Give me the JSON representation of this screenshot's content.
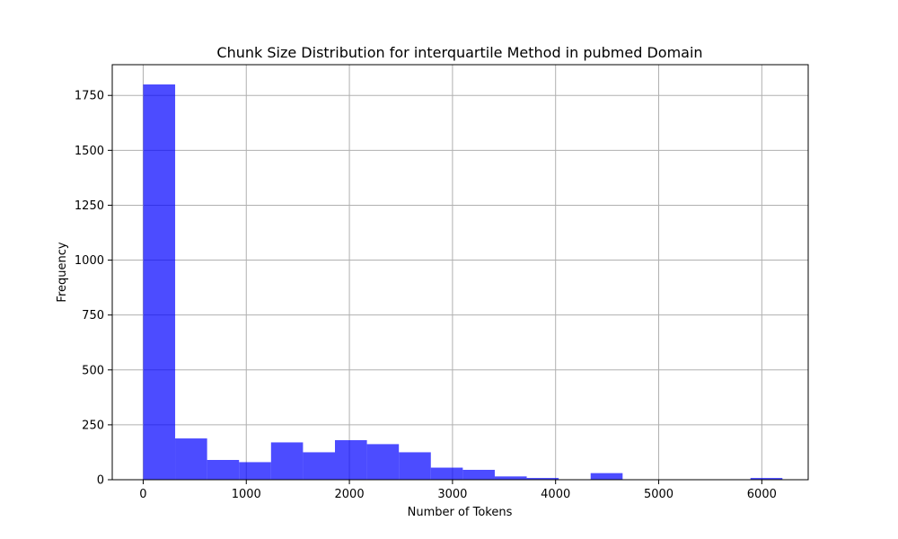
{
  "chart_data": {
    "type": "bar",
    "title": "Chunk Size Distribution for interquartile Method in pubmed Domain",
    "xlabel": "Number of Tokens",
    "ylabel": "Frequency",
    "xlim": [
      -300,
      6450
    ],
    "ylim": [
      0,
      1890
    ],
    "grid": true,
    "bar_color": "#0000ff",
    "bar_opacity": 0.7,
    "x_ticks": [
      0,
      1000,
      2000,
      3000,
      4000,
      5000,
      6000
    ],
    "x_tick_labels": [
      "0",
      "1000",
      "2000",
      "3000",
      "4000",
      "5000",
      "6000"
    ],
    "y_ticks": [
      0,
      250,
      500,
      750,
      1000,
      1250,
      1500,
      1750
    ],
    "y_tick_labels": [
      "0",
      "250",
      "500",
      "750",
      "1000",
      "1250",
      "1500",
      "1750"
    ],
    "bins": [
      {
        "x0": 0,
        "x1": 310,
        "count": 1800
      },
      {
        "x0": 310,
        "x1": 620,
        "count": 188
      },
      {
        "x0": 620,
        "x1": 930,
        "count": 90
      },
      {
        "x0": 930,
        "x1": 1240,
        "count": 80
      },
      {
        "x0": 1240,
        "x1": 1550,
        "count": 170
      },
      {
        "x0": 1550,
        "x1": 1860,
        "count": 125
      },
      {
        "x0": 1860,
        "x1": 2170,
        "count": 180
      },
      {
        "x0": 2170,
        "x1": 2480,
        "count": 162
      },
      {
        "x0": 2480,
        "x1": 2790,
        "count": 125
      },
      {
        "x0": 2790,
        "x1": 3100,
        "count": 55
      },
      {
        "x0": 3100,
        "x1": 3410,
        "count": 45
      },
      {
        "x0": 3410,
        "x1": 3720,
        "count": 15
      },
      {
        "x0": 3720,
        "x1": 4030,
        "count": 8
      },
      {
        "x0": 4030,
        "x1": 4340,
        "count": 0
      },
      {
        "x0": 4340,
        "x1": 4650,
        "count": 30
      },
      {
        "x0": 4650,
        "x1": 4960,
        "count": 0
      },
      {
        "x0": 4960,
        "x1": 5270,
        "count": 0
      },
      {
        "x0": 5270,
        "x1": 5580,
        "count": 0
      },
      {
        "x0": 5580,
        "x1": 5890,
        "count": 0
      },
      {
        "x0": 5890,
        "x1": 6200,
        "count": 8
      }
    ]
  }
}
